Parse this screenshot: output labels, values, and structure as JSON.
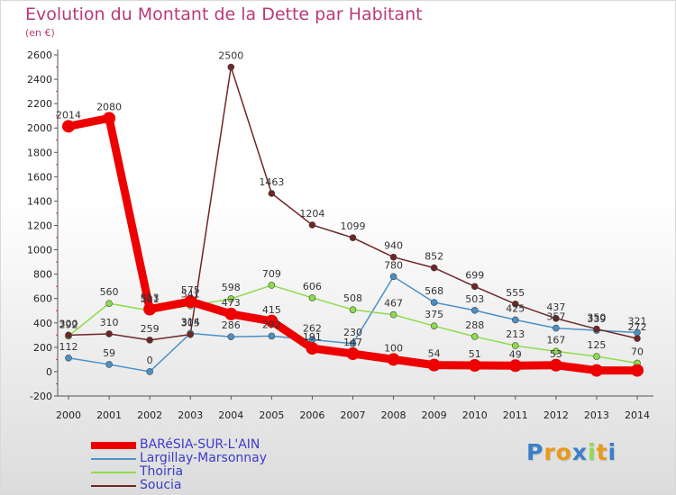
{
  "chart_data": {
    "type": "line",
    "title": "Evolution du Montant de la Dette par Habitant",
    "subtitle": "(en €)",
    "x": [
      "2000",
      "2001",
      "2002",
      "2003",
      "2004",
      "2005",
      "2006",
      "2007",
      "2008",
      "2009",
      "2010",
      "2011",
      "2012",
      "2013",
      "2014"
    ],
    "ylim": [
      -200,
      2600
    ],
    "yticks": [
      -200,
      0,
      200,
      400,
      600,
      800,
      1000,
      1200,
      1400,
      1600,
      1800,
      2000,
      2200,
      2400,
      2600
    ],
    "grid": false,
    "legend_position": "bottom-left",
    "series": [
      {
        "name": "BARéSIA-SUR-L'AIN",
        "color": "#ee0000",
        "values": [
          2014,
          2080,
          513,
          575,
          473,
          415,
          191,
          147,
          100,
          54,
          51,
          49,
          53,
          10,
          10
        ],
        "labels": [
          "2014",
          "2080",
          "513",
          "575",
          "473",
          "415",
          "191",
          "147",
          "100",
          "54",
          "51",
          "49",
          "53",
          "",
          ""
        ]
      },
      {
        "name": "Largillay-Marsonnay",
        "color": "#4a90c8",
        "values": [
          112,
          59,
          0,
          314,
          286,
          292,
          262,
          230,
          780,
          568,
          503,
          425,
          357,
          339,
          321
        ],
        "labels": [
          "112",
          "59",
          "0",
          "314",
          "286",
          "292",
          "262",
          "230",
          "780",
          "568",
          "503",
          "425",
          "357",
          "339",
          "321"
        ]
      },
      {
        "name": "Thoiria",
        "color": "#8edc4a",
        "values": [
          292,
          560,
          501,
          541,
          598,
          709,
          606,
          508,
          467,
          375,
          288,
          213,
          167,
          125,
          70
        ],
        "labels": [
          "292",
          "560",
          "501",
          "541",
          "598",
          "709",
          "606",
          "508",
          "467",
          "375",
          "288",
          "213",
          "167",
          "125",
          "70"
        ]
      },
      {
        "name": "Soucia",
        "color": "#6e2626",
        "values": [
          300,
          310,
          259,
          305,
          2500,
          1463,
          1204,
          1099,
          940,
          852,
          699,
          555,
          437,
          350,
          272
        ],
        "labels": [
          "300",
          "310",
          "259",
          "305",
          "2500",
          "1463",
          "1204",
          "1099",
          "940",
          "852",
          "699",
          "555",
          "437",
          "350",
          "272"
        ]
      }
    ]
  },
  "logo": {
    "text": "Proxiti",
    "letters": [
      "P",
      "r",
      "o",
      "x",
      "i",
      "t",
      "i"
    ],
    "colors": [
      "#3a7fc8",
      "#e89a1a",
      "#e89a1a",
      "#3a7fc8",
      "#8edc4a",
      "#e89a1a",
      "#3a7fc8"
    ]
  }
}
